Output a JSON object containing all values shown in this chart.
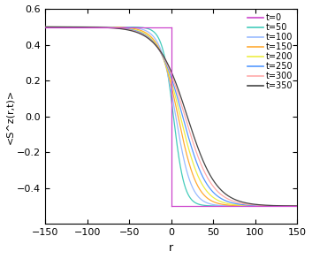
{
  "times": [
    0,
    50,
    100,
    150,
    200,
    250,
    300,
    350
  ],
  "colors": [
    "#cc44cc",
    "#44ccbb",
    "#99bbff",
    "#ffaa33",
    "#eeee44",
    "#5599ff",
    "#ffaaaa",
    "#444444"
  ],
  "xlim": [
    -150,
    150
  ],
  "ylim": [
    -0.6,
    0.6
  ],
  "xticks": [
    -150,
    -100,
    -50,
    0,
    50,
    100,
    150
  ],
  "yticks": [
    -0.4,
    -0.2,
    0,
    0.2,
    0.4,
    0.6
  ],
  "xlabel": "r",
  "ylabel": "<S^z(r,t)>",
  "background_color": "#ffffff",
  "linewidth": 0.9,
  "spread_scale": 1.85,
  "shift_scale": 0.055
}
